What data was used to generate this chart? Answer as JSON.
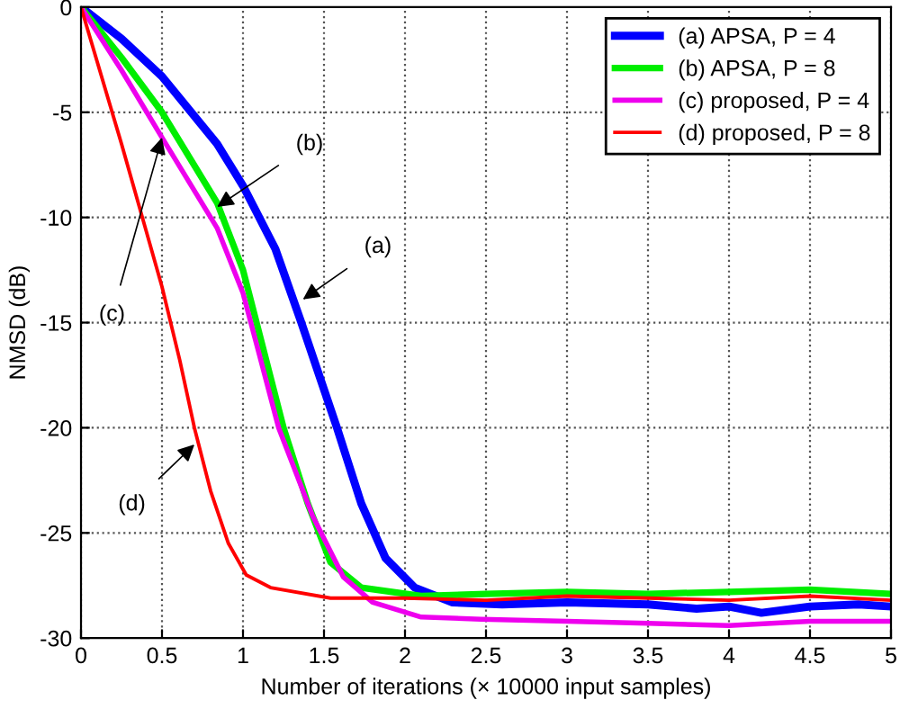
{
  "chart_data": {
    "type": "line",
    "xlabel": "Number of iterations (× 10000 input samples)",
    "ylabel": "NMSD (dB)",
    "xlim": [
      0,
      5
    ],
    "ylim": [
      -30,
      0
    ],
    "xticks": [
      0,
      0.5,
      1,
      1.5,
      2,
      2.5,
      3,
      3.5,
      4,
      4.5,
      5
    ],
    "yticks": [
      -30,
      -25,
      -20,
      -15,
      -10,
      -5,
      0
    ],
    "grid": true,
    "legend": "top right",
    "line_style": "solid",
    "series": [
      {
        "name": "(a) APSA, P = 4",
        "color": "#0000ff",
        "x": [
          0,
          0.25,
          0.5,
          0.84,
          1.0,
          1.2,
          1.36,
          1.47,
          1.58,
          1.73,
          1.88,
          2.06,
          2.29,
          2.6,
          3.0,
          3.5,
          3.8,
          4.0,
          4.2,
          4.5,
          4.8,
          5.0
        ],
        "values": [
          0,
          -1.5,
          -3.3,
          -6.5,
          -8.5,
          -11.5,
          -15.0,
          -17.5,
          -20.0,
          -23.6,
          -26.2,
          -27.6,
          -28.3,
          -28.4,
          -28.3,
          -28.4,
          -28.6,
          -28.5,
          -28.8,
          -28.5,
          -28.4,
          -28.5
        ]
      },
      {
        "name": "(b) APSA, P = 8",
        "color": "#00ee00",
        "x": [
          0,
          0.25,
          0.5,
          0.84,
          1.0,
          1.1,
          1.25,
          1.4,
          1.54,
          1.73,
          2.1,
          2.5,
          3.0,
          3.5,
          4.0,
          4.5,
          5.0
        ],
        "values": [
          0,
          -2.4,
          -5.0,
          -9.3,
          -12.5,
          -15.5,
          -20.0,
          -23.6,
          -26.4,
          -27.6,
          -28.0,
          -27.9,
          -27.8,
          -27.9,
          -27.8,
          -27.7,
          -27.9
        ]
      },
      {
        "name": "(c) proposed, P = 4",
        "color": "#ee00ee",
        "x": [
          0,
          0.25,
          0.5,
          0.84,
          1.0,
          1.1,
          1.22,
          1.43,
          1.62,
          1.8,
          2.1,
          2.47,
          3.0,
          3.5,
          4.0,
          4.5,
          5.0
        ],
        "values": [
          0,
          -3.0,
          -6.2,
          -10.5,
          -13.6,
          -16.5,
          -20.0,
          -24.2,
          -27.1,
          -28.3,
          -29.0,
          -29.1,
          -29.2,
          -29.3,
          -29.4,
          -29.2,
          -29.2
        ]
      },
      {
        "name": "(d) proposed, P = 8",
        "color": "#ff0000",
        "x": [
          0,
          0.25,
          0.5,
          0.61,
          0.7,
          0.8,
          0.91,
          1.02,
          1.17,
          1.54,
          2.0,
          2.5,
          3.0,
          3.5,
          4.0,
          4.5,
          5.0
        ],
        "values": [
          0,
          -6.5,
          -13.3,
          -16.8,
          -20.0,
          -23.0,
          -25.5,
          -27.0,
          -27.6,
          -28.1,
          -28.1,
          -28.2,
          -28.0,
          -28.1,
          -28.2,
          -28.0,
          -28.2
        ]
      }
    ],
    "annotations": [
      {
        "text": "(a)",
        "x": 1.37,
        "y": -13.9
      },
      {
        "text": "(b)",
        "x": 0.84,
        "y": -9.5
      },
      {
        "text": "(c)",
        "x": 0.5,
        "y": -6.2
      },
      {
        "text": "(d)",
        "x": 0.7,
        "y": -20.8
      }
    ]
  }
}
